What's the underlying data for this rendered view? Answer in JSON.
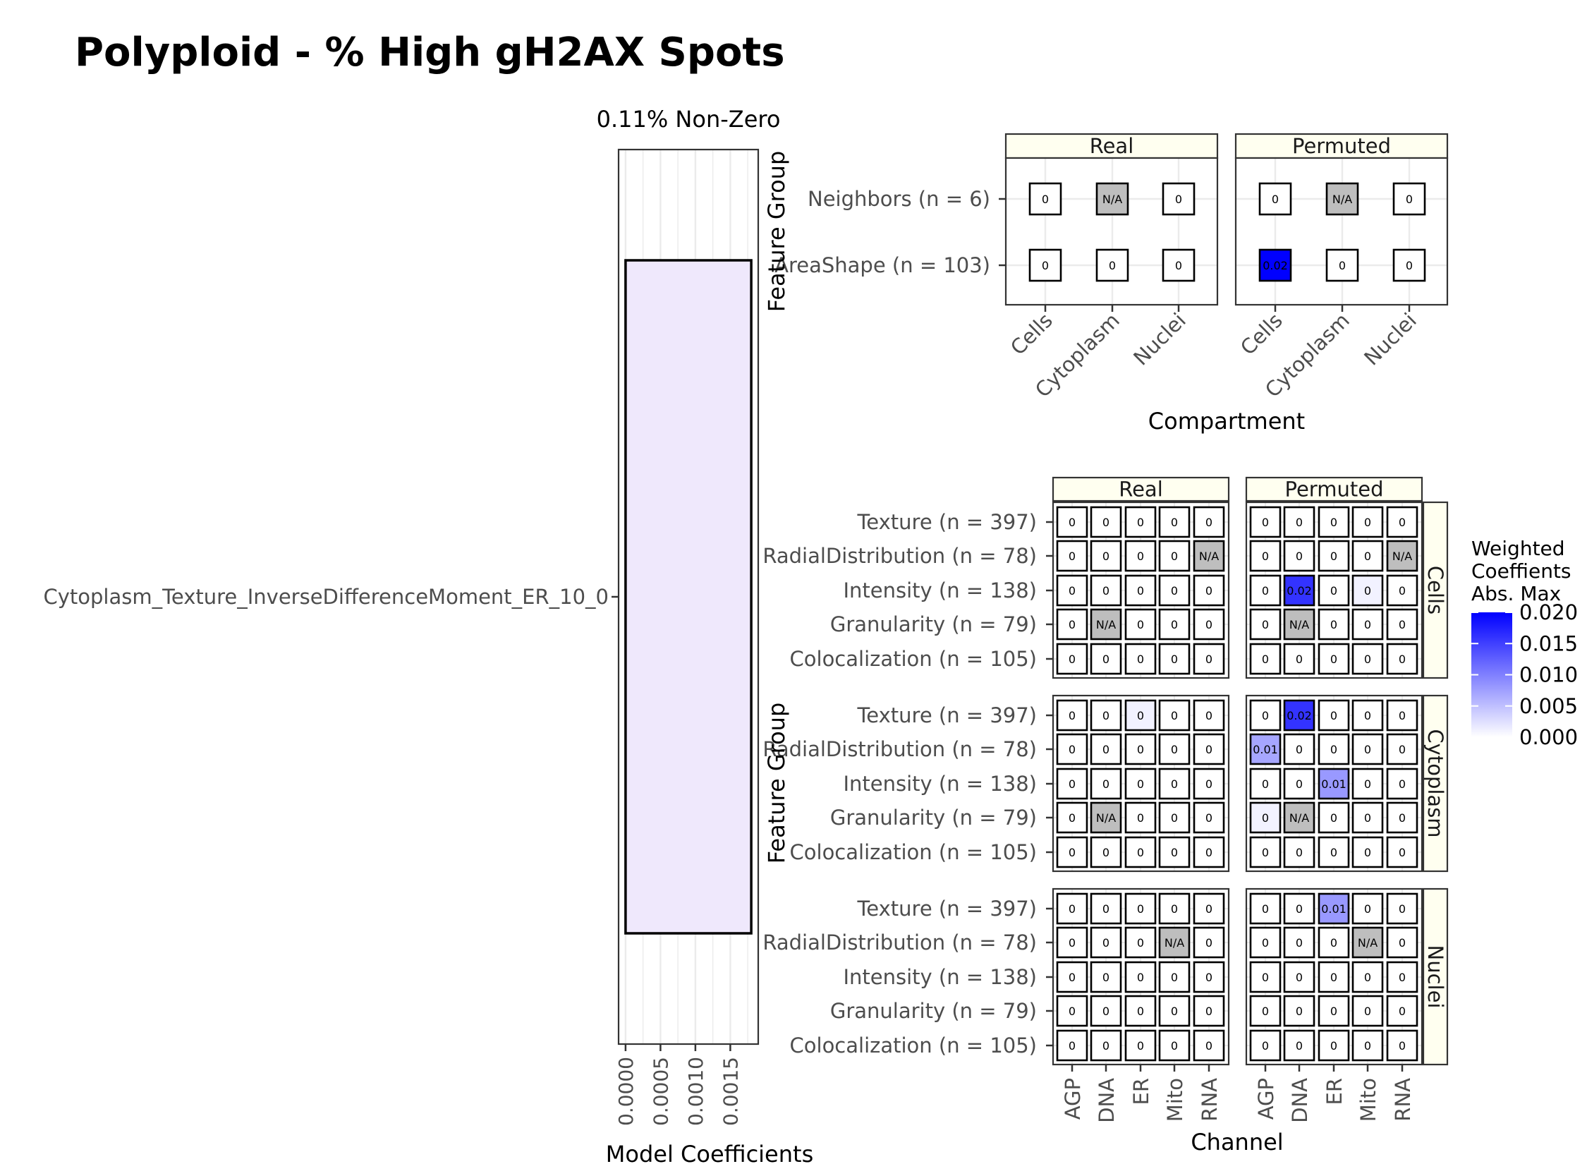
{
  "figure": {
    "title": "Polyploid - % High gH2AX Spots"
  },
  "colors": {
    "panel_border": "#333333",
    "grid": "#ebebeb",
    "strip_fill": "#fffff0",
    "na_fill": "#bebebe",
    "scale_low": "#ffffff",
    "scale_high": "#0000ff",
    "bar_fill": "#efe8fc"
  },
  "chart_data": [
    {
      "type": "bar",
      "orientation": "horizontal",
      "title": "0.11% Non-Zero",
      "categories": [
        "Cytoplasm_Texture_InverseDifferenceMoment_ER_10_0"
      ],
      "values": [
        0.0018
      ],
      "xlabel": "Model Coefficients",
      "xlim": [
        -0.0001,
        0.0019
      ],
      "xticks": [
        0,
        0.0005,
        0.001,
        0.0015
      ],
      "xtick_labels": [
        "0.0000",
        "0.0005",
        "0.0010",
        "0.0015"
      ],
      "grid": true
    },
    {
      "type": "heatmap",
      "facets": [
        "Real",
        "Permuted"
      ],
      "ylabel": "Feature Group",
      "xlabel": "Compartment",
      "x": [
        "Cells",
        "Cytoplasm",
        "Nuclei"
      ],
      "y": [
        "Neighbors (n = 6)",
        "AreaShape (n = 103)"
      ],
      "values": {
        "Real": [
          [
            "0",
            "N/A",
            "0"
          ],
          [
            "0",
            "0",
            "0"
          ]
        ],
        "Permuted": [
          [
            "0",
            "N/A",
            "0"
          ],
          [
            "0.02",
            "0",
            "0"
          ]
        ]
      },
      "fill": {
        "Real": [
          [
            0,
            null,
            0
          ],
          [
            0,
            0,
            0
          ]
        ],
        "Permuted": [
          [
            0,
            null,
            0
          ],
          [
            0.02,
            0,
            0
          ]
        ]
      }
    },
    {
      "type": "heatmap",
      "facets_col": [
        "Real",
        "Permuted"
      ],
      "facets_row": [
        "Cells",
        "Cytoplasm",
        "Nuclei"
      ],
      "ylabel": "Feature Group",
      "xlabel": "Channel",
      "x": [
        "AGP",
        "DNA",
        "ER",
        "Mito",
        "RNA"
      ],
      "y": [
        "Texture (n = 397)",
        "RadialDistribution (n = 78)",
        "Intensity (n = 138)",
        "Granularity (n = 79)",
        "Colocalization (n = 105)"
      ],
      "values": {
        "Cells": {
          "Real": [
            [
              "0",
              "0",
              "0",
              "0",
              "0"
            ],
            [
              "0",
              "0",
              "0",
              "0",
              "N/A"
            ],
            [
              "0",
              "0",
              "0",
              "0",
              "0"
            ],
            [
              "0",
              "N/A",
              "0",
              "0",
              "0"
            ],
            [
              "0",
              "0",
              "0",
              "0",
              "0"
            ]
          ],
          "Permuted": [
            [
              "0",
              "0",
              "0",
              "0",
              "0"
            ],
            [
              "0",
              "0",
              "0",
              "0",
              "N/A"
            ],
            [
              "0",
              "0.02",
              "0",
              "0",
              "0"
            ],
            [
              "0",
              "N/A",
              "0",
              "0",
              "0"
            ],
            [
              "0",
              "0",
              "0",
              "0",
              "0"
            ]
          ]
        },
        "Cytoplasm": {
          "Real": [
            [
              "0",
              "0",
              "0",
              "0",
              "0"
            ],
            [
              "0",
              "0",
              "0",
              "0",
              "0"
            ],
            [
              "0",
              "0",
              "0",
              "0",
              "0"
            ],
            [
              "0",
              "N/A",
              "0",
              "0",
              "0"
            ],
            [
              "0",
              "0",
              "0",
              "0",
              "0"
            ]
          ],
          "Permuted": [
            [
              "0",
              "0.02",
              "0",
              "0",
              "0"
            ],
            [
              "0.01",
              "0",
              "0",
              "0",
              "0"
            ],
            [
              "0",
              "0",
              "0.01",
              "0",
              "0"
            ],
            [
              "0",
              "N/A",
              "0",
              "0",
              "0"
            ],
            [
              "0",
              "0",
              "0",
              "0",
              "0"
            ]
          ]
        },
        "Nuclei": {
          "Real": [
            [
              "0",
              "0",
              "0",
              "0",
              "0"
            ],
            [
              "0",
              "0",
              "0",
              "N/A",
              "0"
            ],
            [
              "0",
              "0",
              "0",
              "0",
              "0"
            ],
            [
              "0",
              "0",
              "0",
              "0",
              "0"
            ],
            [
              "0",
              "0",
              "0",
              "0",
              "0"
            ]
          ],
          "Permuted": [
            [
              "0",
              "0",
              "0.01",
              "0",
              "0"
            ],
            [
              "0",
              "0",
              "0",
              "N/A",
              "0"
            ],
            [
              "0",
              "0",
              "0",
              "0",
              "0"
            ],
            [
              "0",
              "0",
              "0",
              "0",
              "0"
            ],
            [
              "0",
              "0",
              "0",
              "0",
              "0"
            ]
          ]
        }
      },
      "fill": {
        "Cells": {
          "Real": [
            [
              0,
              0,
              0,
              0,
              0
            ],
            [
              0,
              0,
              0,
              0,
              null
            ],
            [
              0,
              0,
              0,
              0,
              0
            ],
            [
              0,
              null,
              0,
              0,
              0
            ],
            [
              0,
              0,
              0,
              0,
              0
            ]
          ],
          "Permuted": [
            [
              0,
              0,
              0,
              0,
              0
            ],
            [
              0,
              0,
              0,
              0,
              null
            ],
            [
              0,
              0.016,
              0,
              0.001,
              0
            ],
            [
              0,
              null,
              0,
              0,
              0
            ],
            [
              0,
              0,
              0,
              0,
              0
            ]
          ]
        },
        "Cytoplasm": {
          "Real": [
            [
              0,
              0,
              0.001,
              0,
              0
            ],
            [
              0,
              0,
              0,
              0,
              0
            ],
            [
              0,
              0,
              0,
              0,
              0
            ],
            [
              0,
              null,
              0,
              0,
              0
            ],
            [
              0,
              0,
              0,
              0,
              0
            ]
          ],
          "Permuted": [
            [
              0,
              0.016,
              0,
              0,
              0
            ],
            [
              0.007,
              0,
              0,
              0,
              0
            ],
            [
              0,
              0,
              0.008,
              0,
              0
            ],
            [
              0.001,
              null,
              0,
              0,
              0
            ],
            [
              0,
              0,
              0,
              0,
              0
            ]
          ]
        },
        "Nuclei": {
          "Real": [
            [
              0,
              0,
              0,
              0,
              0
            ],
            [
              0,
              0,
              0,
              null,
              0
            ],
            [
              0,
              0,
              0,
              0,
              0
            ],
            [
              0,
              0,
              0,
              0,
              0
            ],
            [
              0,
              0,
              0,
              0,
              0
            ]
          ],
          "Permuted": [
            [
              0,
              0,
              0.008,
              0,
              0
            ],
            [
              0,
              0,
              0,
              null,
              0
            ],
            [
              0,
              0,
              0,
              0,
              0
            ],
            [
              0,
              0,
              0,
              0,
              0
            ],
            [
              0,
              0,
              0,
              0,
              0
            ]
          ]
        }
      }
    }
  ],
  "legend": {
    "title_lines": [
      "Weighted",
      "Coeffients",
      "Abs. Max"
    ],
    "range": [
      0,
      0.02
    ],
    "breaks": [
      0,
      0.005,
      0.01,
      0.015,
      0.02
    ],
    "break_labels": [
      "0.000",
      "0.005",
      "0.010",
      "0.015",
      "0.020"
    ],
    "placement": "right"
  }
}
